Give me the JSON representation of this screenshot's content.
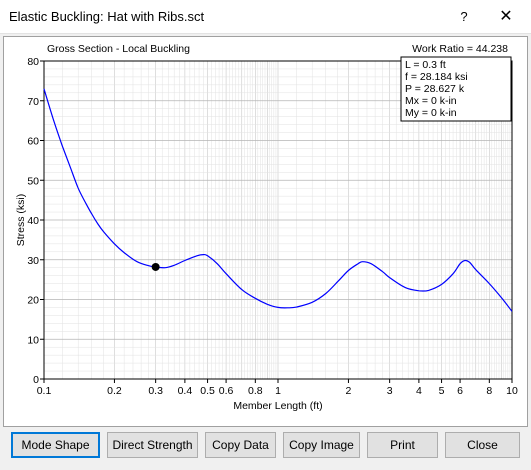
{
  "window": {
    "title": "Elastic Buckling: Hat with Ribs.sct",
    "help_label": "?",
    "close_label": "✕"
  },
  "plot": {
    "title": "Gross Section - Local Buckling",
    "work_ratio": "Work Ratio = 44.238",
    "info": [
      "L = 0.3 ft",
      "f = 28.184 ksi",
      "P = 28.627 k",
      "Mx = 0 k-in",
      "My = 0 k-in"
    ]
  },
  "chart_data": {
    "type": "line",
    "xlabel": "Member Length (ft)",
    "ylabel": "Stress (ksi)",
    "xscale": "log",
    "xlim": [
      0.1,
      10
    ],
    "ylim": [
      0,
      80
    ],
    "grid": true,
    "line_color": "#0000ff",
    "xticks": [
      {
        "v": 0.1,
        "t": "0.1"
      },
      {
        "v": 0.2,
        "t": "0.2"
      },
      {
        "v": 0.3,
        "t": "0.3"
      },
      {
        "v": 0.4,
        "t": "0.4"
      },
      {
        "v": 0.5,
        "t": "0.5"
      },
      {
        "v": 0.6,
        "t": "0.6"
      },
      {
        "v": 0.8,
        "t": "0.8"
      },
      {
        "v": 1,
        "t": "1"
      },
      {
        "v": 2,
        "t": "2"
      },
      {
        "v": 3,
        "t": "3"
      },
      {
        "v": 4,
        "t": "4"
      },
      {
        "v": 5,
        "t": "5"
      },
      {
        "v": 6,
        "t": "6"
      },
      {
        "v": 8,
        "t": "8"
      },
      {
        "v": 10,
        "t": "10"
      }
    ],
    "yticks": [
      0,
      10,
      20,
      30,
      40,
      50,
      60,
      70,
      80
    ],
    "points": [
      [
        0.1,
        73
      ],
      [
        0.11,
        65
      ],
      [
        0.12,
        58.5
      ],
      [
        0.13,
        53
      ],
      [
        0.14,
        48
      ],
      [
        0.15,
        44.5
      ],
      [
        0.16,
        41.5
      ],
      [
        0.17,
        39
      ],
      [
        0.18,
        37
      ],
      [
        0.2,
        34
      ],
      [
        0.22,
        31.8
      ],
      [
        0.25,
        29.5
      ],
      [
        0.28,
        28.5
      ],
      [
        0.3,
        28.184
      ],
      [
        0.33,
        28
      ],
      [
        0.36,
        28.6
      ],
      [
        0.4,
        29.8
      ],
      [
        0.45,
        31
      ],
      [
        0.48,
        31.3
      ],
      [
        0.5,
        31
      ],
      [
        0.55,
        29
      ],
      [
        0.6,
        26.5
      ],
      [
        0.7,
        22.5
      ],
      [
        0.8,
        20.3
      ],
      [
        0.9,
        18.8
      ],
      [
        1,
        18
      ],
      [
        1.1,
        17.9
      ],
      [
        1.2,
        18.1
      ],
      [
        1.4,
        19.3
      ],
      [
        1.6,
        21.5
      ],
      [
        1.8,
        24.5
      ],
      [
        2,
        27.3
      ],
      [
        2.2,
        29
      ],
      [
        2.3,
        29.5
      ],
      [
        2.5,
        29
      ],
      [
        2.8,
        27
      ],
      [
        3,
        25.5
      ],
      [
        3.5,
        23
      ],
      [
        4,
        22.2
      ],
      [
        4.4,
        22.3
      ],
      [
        5,
        23.8
      ],
      [
        5.6,
        26.5
      ],
      [
        6,
        29
      ],
      [
        6.3,
        29.8
      ],
      [
        6.6,
        29.3
      ],
      [
        7,
        27.5
      ],
      [
        8,
        24
      ],
      [
        9,
        20.5
      ],
      [
        10,
        17
      ]
    ],
    "marker": {
      "x": 0.3,
      "y": 28.184
    }
  },
  "buttons": {
    "mode_shape": "Mode Shape",
    "direct_strength": "Direct Strength",
    "copy_data": "Copy Data",
    "copy_image": "Copy Image",
    "print": "Print",
    "close": "Close"
  }
}
